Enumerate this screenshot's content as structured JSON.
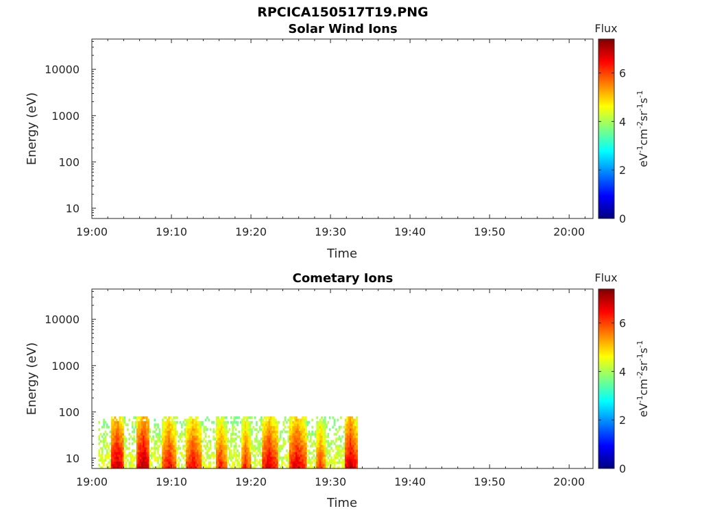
{
  "figure_title": "RPCICA150517T19.PNG",
  "colormap": [
    "#00007f",
    "#0000ff",
    "#007fff",
    "#00ffff",
    "#7fff7f",
    "#ffff00",
    "#ff7f00",
    "#ff0000",
    "#7f0000"
  ],
  "chart_data": [
    {
      "type": "heatmap",
      "title": "Solar Wind Ions",
      "xlabel": "Time",
      "ylabel": "Energy (eV)",
      "x_ticks": [
        "19:00",
        "19:10",
        "19:20",
        "19:30",
        "19:40",
        "19:50",
        "20:00"
      ],
      "x_range_minutes": [
        0,
        63
      ],
      "y_scale": "log",
      "y_ticks": [
        "10",
        "100",
        "1000",
        "10000"
      ],
      "y_range": [
        6,
        45000
      ],
      "colorbar": {
        "label": "Flux",
        "unit": "eV-1cm-2sr-1s-1",
        "ticks": [
          "0",
          "2",
          "4",
          "6"
        ],
        "range": [
          0,
          7.4
        ]
      },
      "data": []
    },
    {
      "type": "heatmap",
      "title": "Cometary Ions",
      "xlabel": "Time",
      "ylabel": "Energy (eV)",
      "x_ticks": [
        "19:00",
        "19:10",
        "19:20",
        "19:30",
        "19:40",
        "19:50",
        "20:00"
      ],
      "x_range_minutes": [
        0,
        63
      ],
      "y_scale": "log",
      "y_ticks": [
        "10",
        "100",
        "1000",
        "10000"
      ],
      "y_range": [
        6,
        45000
      ],
      "colorbar": {
        "label": "Flux",
        "unit": "eV-1cm-2sr-1s-1",
        "ticks": [
          "0",
          "2",
          "4",
          "6"
        ],
        "range": [
          0,
          7.4
        ]
      },
      "data_coverage_minutes": [
        0.8,
        33.2
      ],
      "energy_extent_eV": [
        6,
        80
      ],
      "flux_bursts": [
        {
          "t_start": 2.2,
          "t_end": 4.0,
          "peak_flux": 7.0
        },
        {
          "t_start": 5.6,
          "t_end": 7.2,
          "peak_flux": 7.2
        },
        {
          "t_start": 8.8,
          "t_end": 10.4,
          "peak_flux": 6.6
        },
        {
          "t_start": 11.7,
          "t_end": 13.6,
          "peak_flux": 6.6
        },
        {
          "t_start": 15.4,
          "t_end": 16.8,
          "peak_flux": 6.4
        },
        {
          "t_start": 18.6,
          "t_end": 19.8,
          "peak_flux": 6.3
        },
        {
          "t_start": 21.2,
          "t_end": 23.2,
          "peak_flux": 6.8
        },
        {
          "t_start": 24.6,
          "t_end": 26.8,
          "peak_flux": 6.8
        },
        {
          "t_start": 28.0,
          "t_end": 29.2,
          "peak_flux": 6.2
        },
        {
          "t_start": 31.6,
          "t_end": 33.2,
          "peak_flux": 7.0
        }
      ],
      "background_flux": 4.4
    }
  ]
}
